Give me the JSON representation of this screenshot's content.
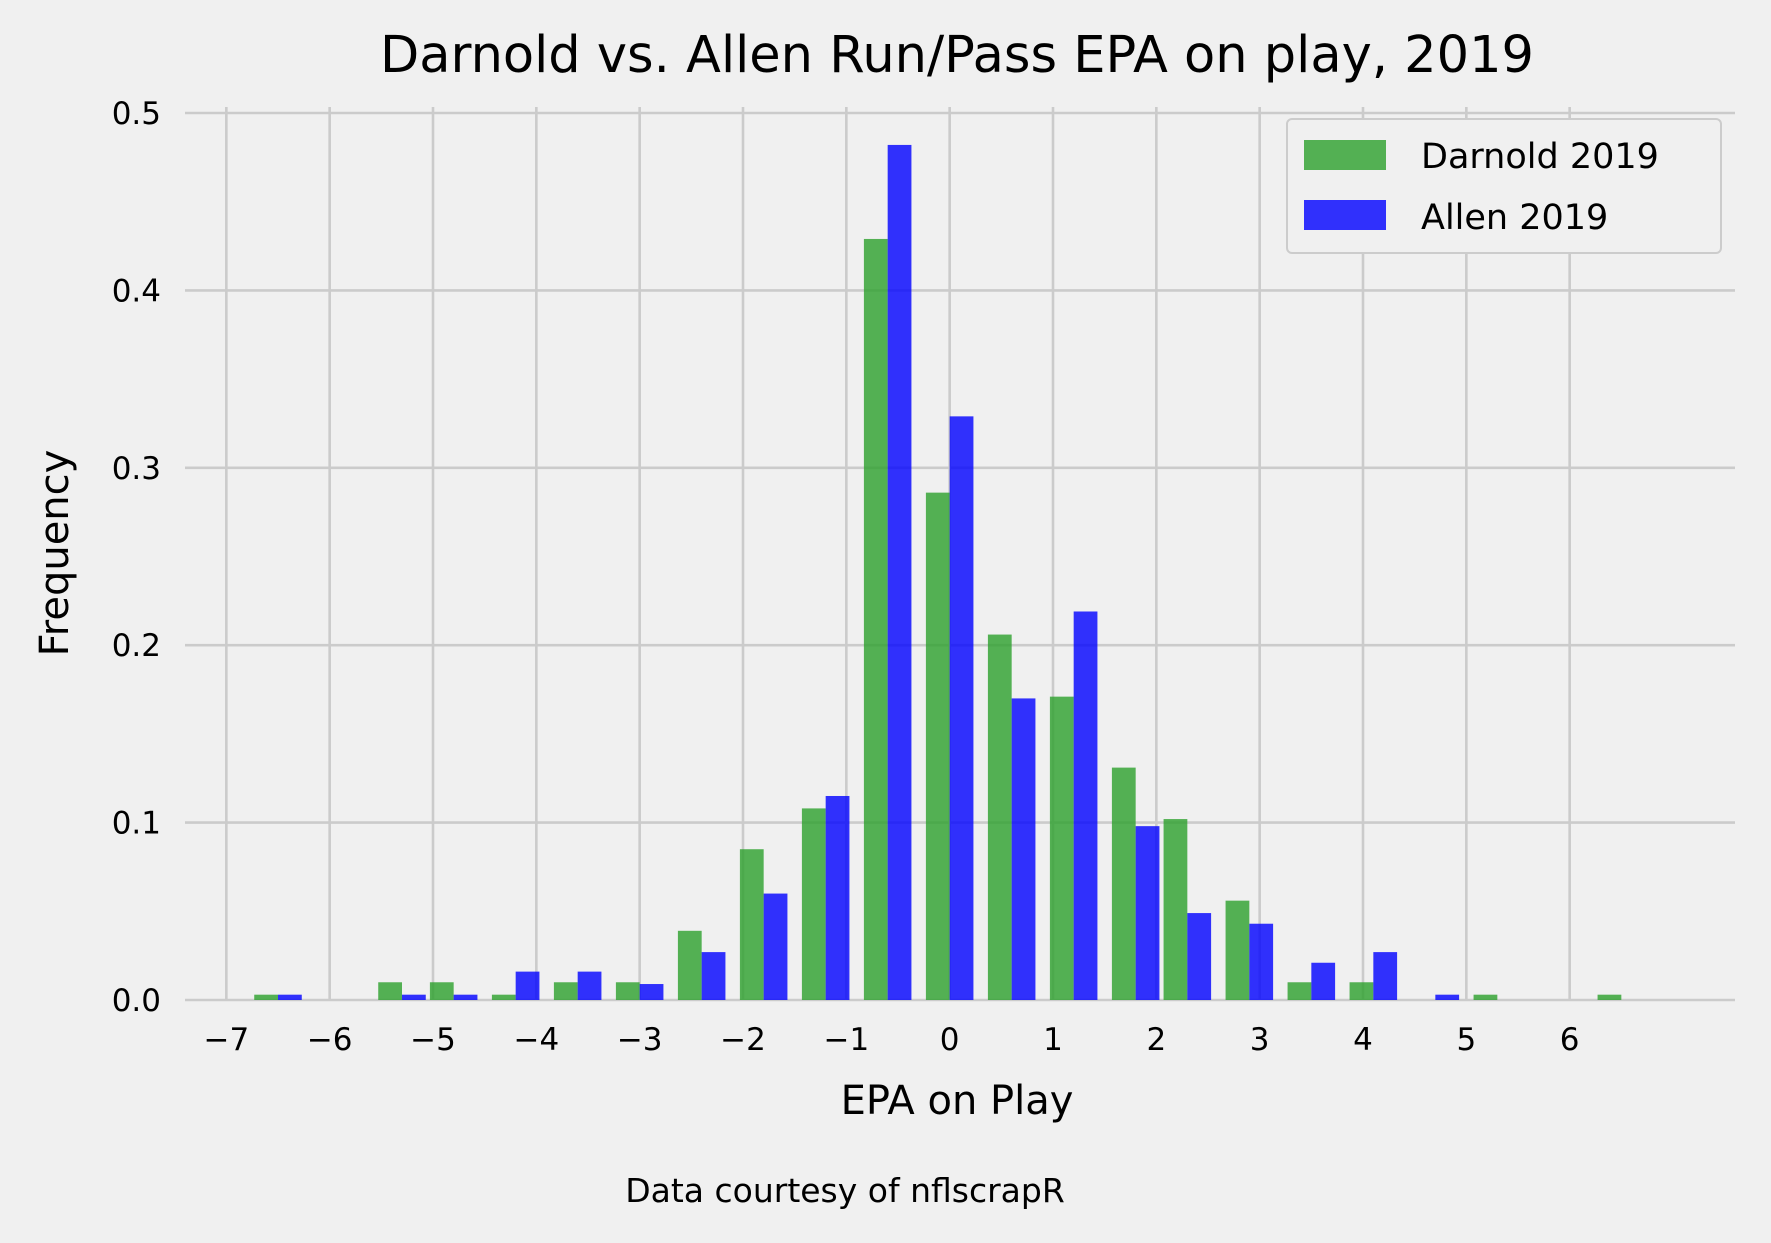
{
  "chart_data": {
    "type": "bar",
    "title": "Darnold vs. Allen Run/Pass EPA on play, 2019",
    "xlabel": "EPA on Play",
    "ylabel": "Frequency",
    "caption": "Data courtesy of nflscrapR",
    "xlim": [
      -7.4,
      7.6
    ],
    "ylim": [
      0,
      0.5
    ],
    "x_ticks": [
      -7,
      -6,
      -5,
      -4,
      -3,
      -2,
      -1,
      0,
      1,
      2,
      3,
      4,
      5,
      6
    ],
    "x_tick_labels": [
      "−7",
      "−6",
      "−5",
      "−4",
      "−3",
      "−2",
      "−1",
      "0",
      "1",
      "2",
      "3",
      "4",
      "5",
      "6"
    ],
    "y_ticks": [
      0.0,
      0.1,
      0.2,
      0.3,
      0.4,
      0.5
    ],
    "y_tick_labels": [
      "0.0",
      "0.1",
      "0.2",
      "0.3",
      "0.4",
      "0.5"
    ],
    "grid": true,
    "legend_position": "top-right",
    "bin_centers": [
      -6.5,
      -5.9,
      -5.3,
      -4.8,
      -4.2,
      -3.6,
      -3.0,
      -2.4,
      -1.8,
      -1.2,
      -0.6,
      0.0,
      0.6,
      1.2,
      1.8,
      2.3,
      2.9,
      3.5,
      4.1,
      4.7,
      5.3,
      5.9,
      6.5
    ],
    "series": [
      {
        "name": "Darnold 2019",
        "color": "#2ca02c",
        "values": [
          0.003,
          0.0,
          0.01,
          0.01,
          0.003,
          0.01,
          0.01,
          0.039,
          0.085,
          0.108,
          0.429,
          0.286,
          0.206,
          0.171,
          0.131,
          0.102,
          0.056,
          0.01,
          0.01,
          0.0,
          0.003,
          0.0,
          0.003
        ]
      },
      {
        "name": "Allen 2019",
        "color": "#0000ff",
        "values": [
          0.003,
          0.0,
          0.003,
          0.003,
          0.016,
          0.016,
          0.009,
          0.027,
          0.06,
          0.115,
          0.482,
          0.329,
          0.17,
          0.219,
          0.098,
          0.049,
          0.043,
          0.021,
          0.027,
          0.003,
          0.0,
          0.0,
          0.0
        ]
      }
    ]
  }
}
